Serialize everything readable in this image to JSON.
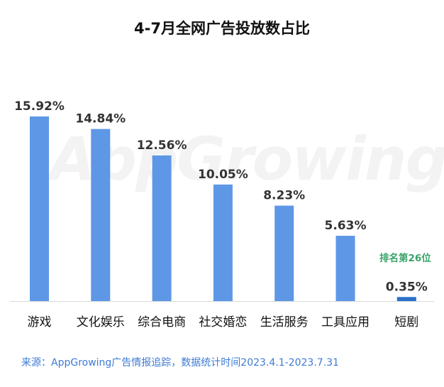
{
  "title": "4-7月全网广告投放数占比",
  "watermark": "AppGrowing",
  "annotation": "排名第26位",
  "source": "来源：AppGrowing广告情报追踪，数据统计时间2023.4.1-2023.7.31",
  "colors": {
    "bar": "#5e97e6",
    "highlight_bar": "#2a6fc9",
    "annotation": "#3aa36b",
    "source": "#3d7bd4"
  },
  "chart_data": {
    "type": "bar",
    "title": "4-7月全网广告投放数占比",
    "categories": [
      "游戏",
      "文化娱乐",
      "综合电商",
      "社交婚恋",
      "生活服务",
      "工具应用",
      "短剧"
    ],
    "values": [
      15.92,
      14.84,
      12.56,
      10.05,
      8.23,
      5.63,
      0.35
    ],
    "value_labels": [
      "15.92%",
      "14.84%",
      "12.56%",
      "10.05%",
      "8.23%",
      "5.63%",
      "0.35%"
    ],
    "unit": "%",
    "highlight_category": "短剧",
    "grid": false,
    "legend": "none"
  }
}
